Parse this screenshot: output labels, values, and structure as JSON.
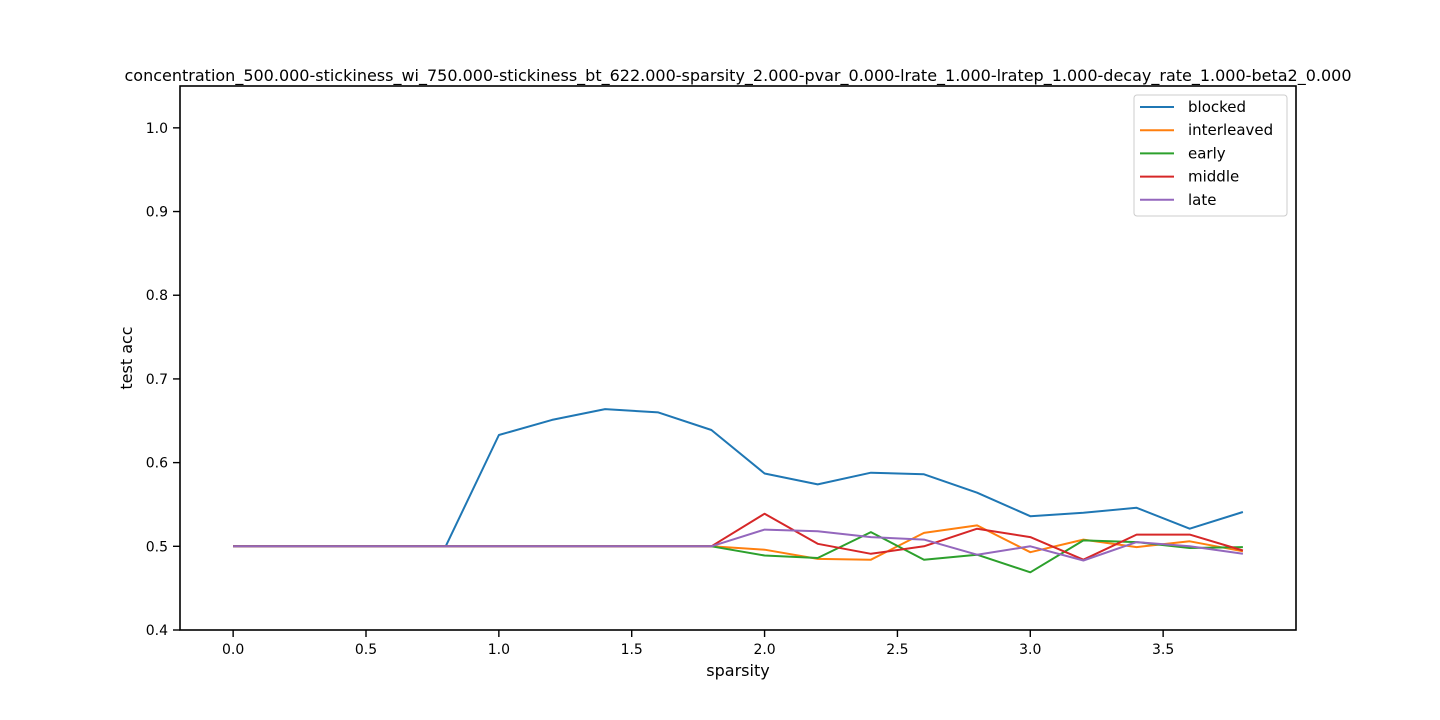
{
  "chart_data": {
    "type": "line",
    "title": "concentration_500.000-stickiness_wi_750.000-stickiness_bt_622.000-sparsity_2.000-pvar_0.000-lrate_1.000-lratep_1.000-decay_rate_1.000-beta2_0.000",
    "xlabel": "sparsity",
    "ylabel": "test acc",
    "xlim": [
      -0.2,
      4.0
    ],
    "ylim": [
      0.4,
      1.05
    ],
    "xticks": [
      "0.0",
      "0.5",
      "1.0",
      "1.5",
      "2.0",
      "2.5",
      "3.0",
      "3.5"
    ],
    "yticks": [
      "0.4",
      "0.5",
      "0.6",
      "0.7",
      "0.8",
      "0.9",
      "1.0"
    ],
    "legend_position": "top-right",
    "grid": false,
    "x": [
      0.0,
      0.2,
      0.4,
      0.6,
      0.8,
      1.0,
      1.2,
      1.4,
      1.6,
      1.8,
      2.0,
      2.2,
      2.4,
      2.6,
      2.8,
      3.0,
      3.2,
      3.4,
      3.6,
      3.8
    ],
    "series": [
      {
        "name": "blocked",
        "color": "#1f77b4",
        "values": [
          0.5,
          0.5,
          0.5,
          0.5,
          0.5,
          0.633,
          0.651,
          0.664,
          0.66,
          0.639,
          0.587,
          0.574,
          0.588,
          0.586,
          0.564,
          0.536,
          0.54,
          0.546,
          0.521,
          0.541
        ]
      },
      {
        "name": "interleaved",
        "color": "#ff7f0e",
        "values": [
          0.5,
          0.5,
          0.5,
          0.5,
          0.5,
          0.5,
          0.5,
          0.5,
          0.5,
          0.5,
          0.496,
          0.485,
          0.484,
          0.516,
          0.525,
          0.493,
          0.508,
          0.499,
          0.506,
          0.494
        ]
      },
      {
        "name": "early",
        "color": "#2ca02c",
        "values": [
          0.5,
          0.5,
          0.5,
          0.5,
          0.5,
          0.5,
          0.5,
          0.5,
          0.5,
          0.5,
          0.489,
          0.486,
          0.517,
          0.484,
          0.49,
          0.469,
          0.507,
          0.505,
          0.498,
          0.499
        ]
      },
      {
        "name": "middle",
        "color": "#d62728",
        "values": [
          0.5,
          0.5,
          0.5,
          0.5,
          0.5,
          0.5,
          0.5,
          0.5,
          0.5,
          0.5,
          0.539,
          0.503,
          0.491,
          0.5,
          0.521,
          0.511,
          0.484,
          0.514,
          0.514,
          0.495
        ]
      },
      {
        "name": "late",
        "color": "#9467bd",
        "values": [
          0.5,
          0.5,
          0.5,
          0.5,
          0.5,
          0.5,
          0.5,
          0.5,
          0.5,
          0.5,
          0.52,
          0.518,
          0.511,
          0.508,
          0.49,
          0.5,
          0.483,
          0.505,
          0.5,
          0.491
        ]
      }
    ]
  }
}
